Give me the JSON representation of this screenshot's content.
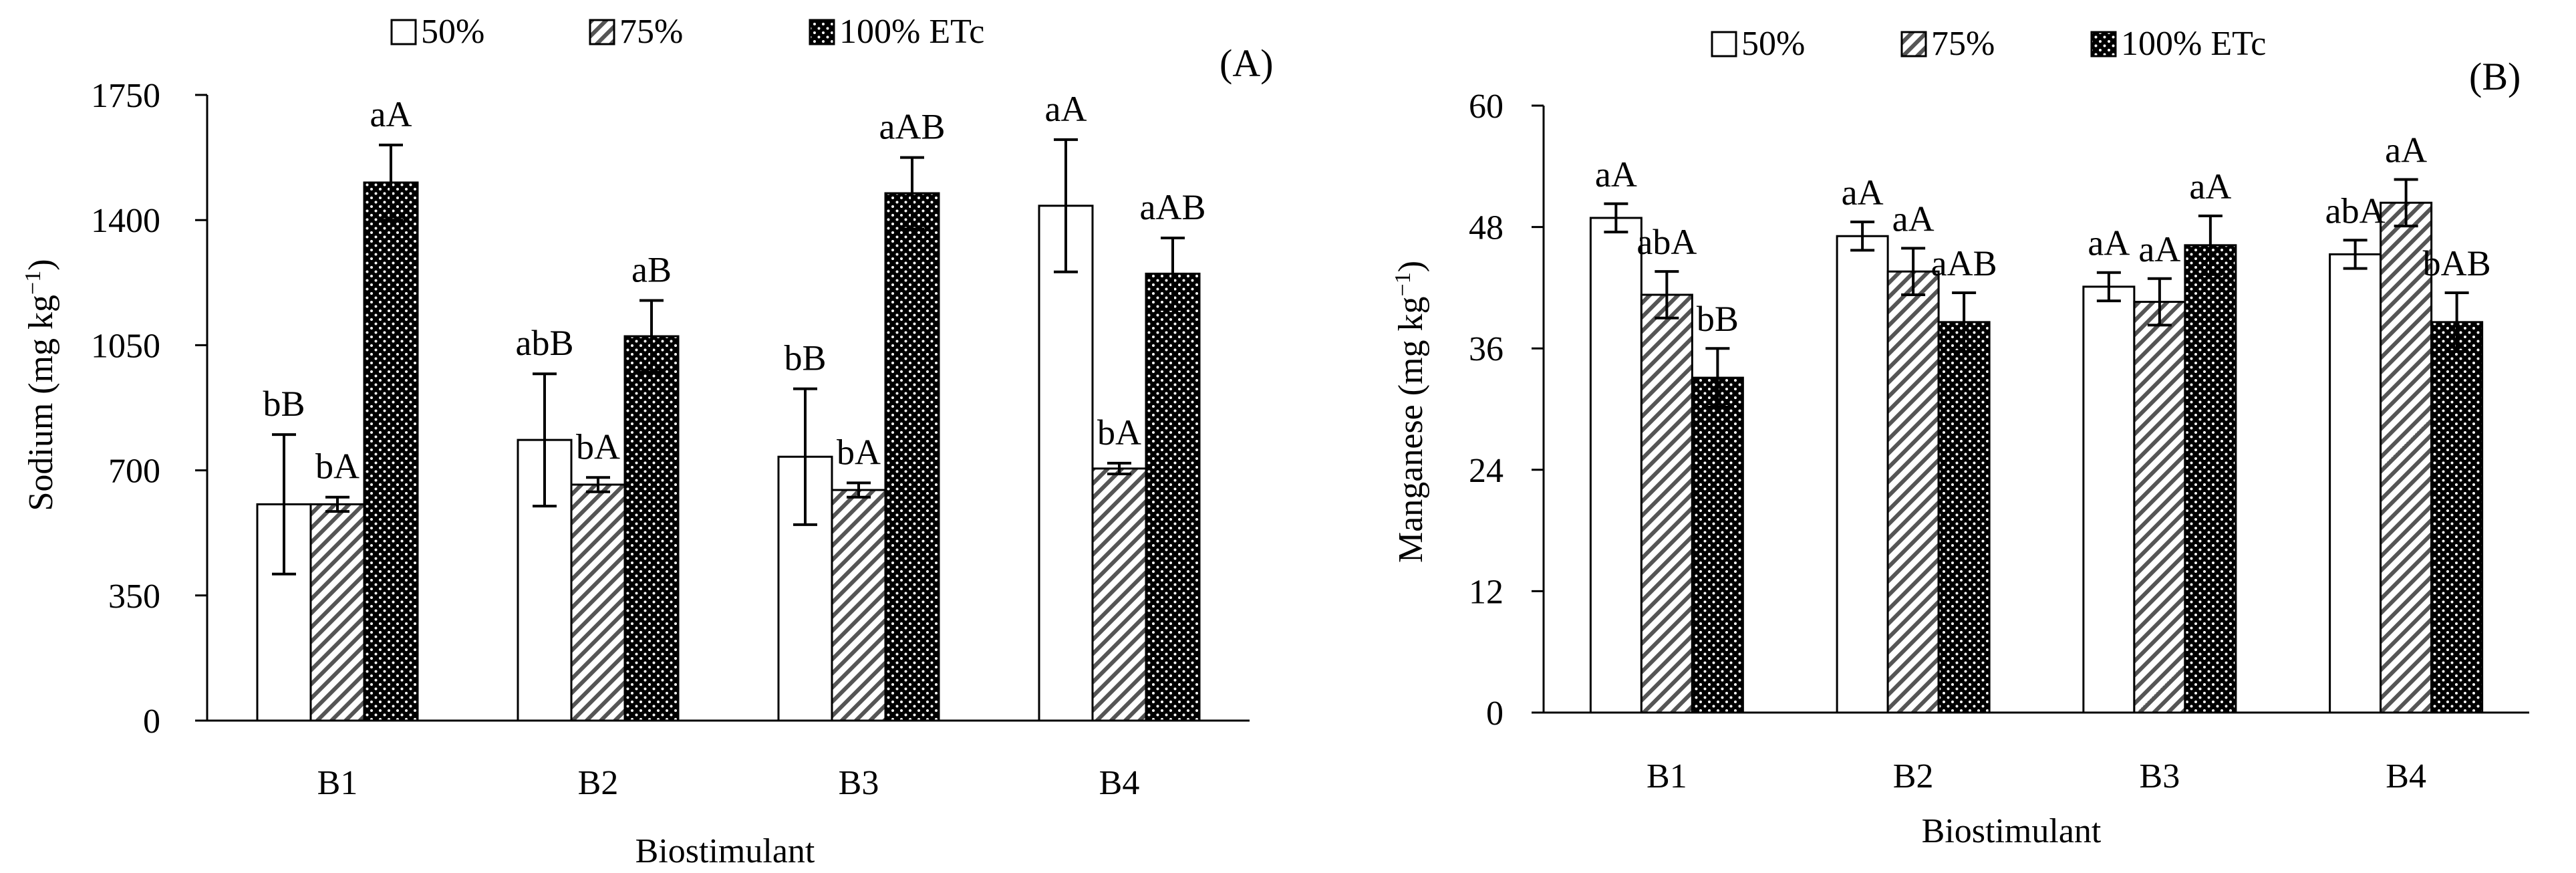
{
  "legend_labels": [
    "50%",
    "75%",
    "100% ETc"
  ],
  "chart_data": [
    {
      "type": "bar",
      "panel_label": "(A)",
      "title": "",
      "categories": [
        "B1",
        "B2",
        "B3",
        "B4"
      ],
      "xlabel": "Biostimulant",
      "ylabel": "Sodium (mg kg",
      "ylabel_sup": "−1",
      "ylabel_close": ")",
      "ylim": [
        0,
        1750
      ],
      "yticks": [
        0,
        350,
        700,
        1050,
        1400,
        1750
      ],
      "series": [
        {
          "name": "50%",
          "values": [
            605,
            785,
            738,
            1440
          ],
          "errors": [
            195,
            185,
            190,
            185
          ],
          "labels": [
            "bB",
            "abB",
            "bB",
            "aA"
          ]
        },
        {
          "name": "75%",
          "values": [
            605,
            660,
            645,
            705
          ],
          "errors": [
            20,
            20,
            20,
            15
          ],
          "labels": [
            "bA",
            "bA",
            "bA",
            "bA"
          ]
        },
        {
          "name": "100% ETc",
          "values": [
            1505,
            1075,
            1475,
            1250
          ],
          "errors": [
            105,
            100,
            100,
            100
          ],
          "labels": [
            "aA",
            "aB",
            "aAB",
            "aAB"
          ]
        }
      ]
    },
    {
      "type": "bar",
      "panel_label": "(B)",
      "title": "",
      "categories": [
        "B1",
        "B2",
        "B3",
        "B4"
      ],
      "xlabel": "Biostimulant",
      "ylabel": "Manganese (mg kg",
      "ylabel_sup": "−1",
      "ylabel_close": ")",
      "ylim": [
        0,
        60
      ],
      "yticks": [
        0,
        12,
        24,
        36,
        48,
        60
      ],
      "series": [
        {
          "name": "50%",
          "values": [
            48.9,
            47.1,
            42.1,
            45.3
          ],
          "errors": [
            1.4,
            1.4,
            1.4,
            1.4
          ],
          "labels": [
            "aA",
            "aA",
            "aA",
            "abA"
          ]
        },
        {
          "name": "75%",
          "values": [
            41.3,
            43.6,
            40.6,
            50.4
          ],
          "errors": [
            2.3,
            2.3,
            2.3,
            2.3
          ],
          "labels": [
            "abA",
            "aA",
            "aA",
            "aA"
          ]
        },
        {
          "name": "100% ETc",
          "values": [
            33.1,
            38.6,
            46.2,
            38.6
          ],
          "errors": [
            2.9,
            2.9,
            2.9,
            2.9
          ],
          "labels": [
            "bB",
            "aAB",
            "aA",
            "bAB"
          ]
        }
      ]
    }
  ]
}
